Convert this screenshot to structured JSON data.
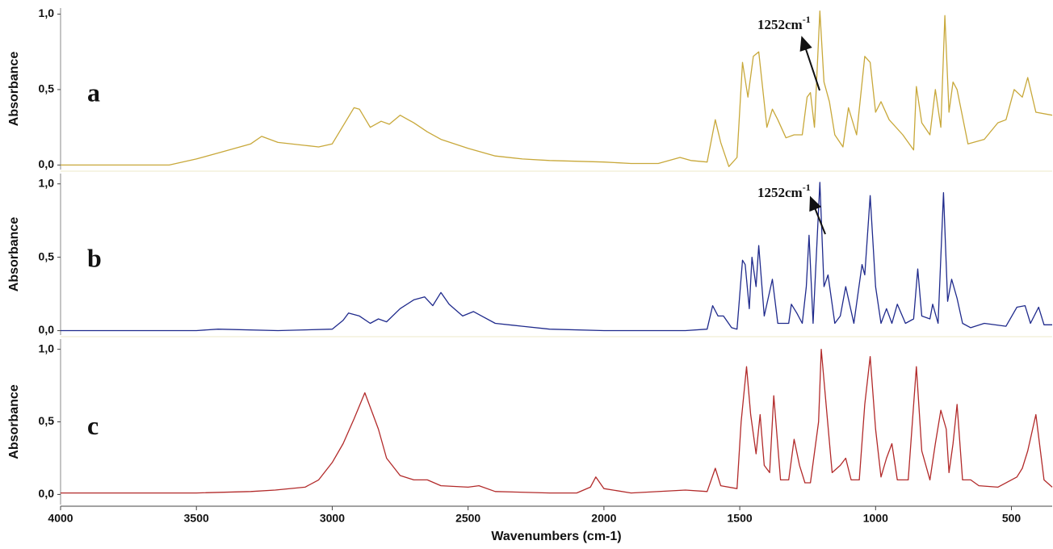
{
  "chart_data": [
    {
      "type": "line",
      "panel_label": "a",
      "ylabel": "Absorbance",
      "color": "#c8a83a",
      "annotation": {
        "text": "1252cm",
        "sup": "-1"
      },
      "xlim": [
        4000,
        350
      ],
      "ylim": [
        -0.03,
        1.04
      ],
      "yticks": [
        {
          "value": 0,
          "label": "0,0"
        },
        {
          "value": 0.5,
          "label": "0,5"
        },
        {
          "value": 1,
          "label": "1,0"
        }
      ],
      "x": [
        4000,
        3800,
        3600,
        3500,
        3400,
        3300,
        3260,
        3200,
        3100,
        3050,
        3000,
        2960,
        2920,
        2900,
        2860,
        2820,
        2790,
        2750,
        2700,
        2650,
        2600,
        2500,
        2400,
        2300,
        2200,
        2000,
        1900,
        1800,
        1720,
        1680,
        1620,
        1590,
        1570,
        1540,
        1510,
        1490,
        1470,
        1450,
        1430,
        1400,
        1380,
        1360,
        1330,
        1300,
        1270,
        1252,
        1240,
        1225,
        1205,
        1190,
        1170,
        1150,
        1120,
        1100,
        1070,
        1040,
        1020,
        1000,
        980,
        950,
        900,
        860,
        850,
        830,
        800,
        780,
        760,
        745,
        730,
        715,
        700,
        660,
        600,
        550,
        520,
        490,
        460,
        440,
        410,
        350
      ],
      "values": [
        0,
        0,
        0,
        0.04,
        0.09,
        0.14,
        0.19,
        0.15,
        0.13,
        0.12,
        0.14,
        0.26,
        0.38,
        0.37,
        0.25,
        0.29,
        0.27,
        0.33,
        0.28,
        0.22,
        0.17,
        0.11,
        0.06,
        0.04,
        0.03,
        0.02,
        0.01,
        0.01,
        0.05,
        0.03,
        0.02,
        0.3,
        0.15,
        -0.01,
        0.05,
        0.68,
        0.45,
        0.72,
        0.75,
        0.25,
        0.37,
        0.3,
        0.18,
        0.2,
        0.2,
        0.45,
        0.48,
        0.25,
        1.02,
        0.55,
        0.42,
        0.2,
        0.12,
        0.38,
        0.2,
        0.72,
        0.68,
        0.35,
        0.42,
        0.3,
        0.2,
        0.1,
        0.52,
        0.28,
        0.2,
        0.5,
        0.25,
        0.99,
        0.35,
        0.55,
        0.5,
        0.14,
        0.17,
        0.28,
        0.3,
        0.5,
        0.45,
        0.58,
        0.35,
        0.33
      ]
    },
    {
      "type": "line",
      "panel_label": "b",
      "ylabel": "Absorbance",
      "color": "#1f2a8c",
      "annotation": {
        "text": "1252cm",
        "sup": "-1"
      },
      "xlim": [
        4000,
        350
      ],
      "ylim": [
        -0.03,
        1.07
      ],
      "yticks": [
        {
          "value": 0,
          "label": "0,0"
        },
        {
          "value": 0.5,
          "label": "0,5"
        },
        {
          "value": 1,
          "label": "1,0"
        }
      ],
      "x": [
        4000,
        3500,
        3420,
        3200,
        3000,
        2960,
        2940,
        2900,
        2860,
        2830,
        2800,
        2750,
        2700,
        2660,
        2630,
        2600,
        2570,
        2520,
        2480,
        2450,
        2400,
        2300,
        2200,
        2000,
        1800,
        1700,
        1620,
        1600,
        1580,
        1560,
        1530,
        1510,
        1490,
        1480,
        1465,
        1455,
        1440,
        1430,
        1410,
        1380,
        1360,
        1320,
        1310,
        1290,
        1270,
        1255,
        1245,
        1230,
        1205,
        1190,
        1175,
        1150,
        1130,
        1110,
        1080,
        1050,
        1040,
        1020,
        1000,
        980,
        960,
        940,
        920,
        890,
        860,
        845,
        830,
        800,
        790,
        770,
        750,
        735,
        720,
        700,
        680,
        650,
        600,
        520,
        480,
        450,
        430,
        400,
        380,
        350
      ],
      "values": [
        0,
        0,
        0.01,
        0,
        0.01,
        0.07,
        0.12,
        0.1,
        0.05,
        0.08,
        0.06,
        0.15,
        0.21,
        0.23,
        0.17,
        0.26,
        0.18,
        0.1,
        0.13,
        0.1,
        0.05,
        0.03,
        0.01,
        0,
        0,
        0,
        0.01,
        0.17,
        0.1,
        0.1,
        0.02,
        0.01,
        0.48,
        0.45,
        0.15,
        0.5,
        0.3,
        0.58,
        0.1,
        0.35,
        0.05,
        0.05,
        0.18,
        0.12,
        0.05,
        0.3,
        0.65,
        0.05,
        1.01,
        0.3,
        0.38,
        0.05,
        0.1,
        0.3,
        0.05,
        0.45,
        0.38,
        0.92,
        0.3,
        0.05,
        0.15,
        0.05,
        0.18,
        0.05,
        0.08,
        0.42,
        0.1,
        0.08,
        0.18,
        0.05,
        0.94,
        0.2,
        0.35,
        0.22,
        0.05,
        0.02,
        0.05,
        0.03,
        0.16,
        0.17,
        0.05,
        0.16,
        0.04,
        0.04
      ]
    },
    {
      "type": "line",
      "panel_label": "c",
      "ylabel": "Absorbance",
      "xlabel": "Wavenumbers (cm-1)",
      "color": "#b22a2a",
      "xlim": [
        4000,
        350
      ],
      "ylim": [
        -0.07,
        1.07
      ],
      "xticks": [
        4000,
        3500,
        3000,
        2500,
        2000,
        1500,
        1000,
        500
      ],
      "yticks": [
        {
          "value": 0,
          "label": "0,0"
        },
        {
          "value": 0.5,
          "label": "0,5"
        },
        {
          "value": 1,
          "label": "1,0"
        }
      ],
      "x": [
        4000,
        3500,
        3300,
        3210,
        3100,
        3050,
        3000,
        2960,
        2920,
        2880,
        2850,
        2830,
        2800,
        2750,
        2700,
        2650,
        2600,
        2500,
        2460,
        2400,
        2200,
        2100,
        2050,
        2030,
        2000,
        1900,
        1700,
        1620,
        1590,
        1570,
        1510,
        1495,
        1475,
        1460,
        1440,
        1425,
        1410,
        1390,
        1375,
        1350,
        1320,
        1300,
        1280,
        1260,
        1240,
        1210,
        1200,
        1180,
        1160,
        1130,
        1110,
        1090,
        1060,
        1040,
        1020,
        1000,
        980,
        960,
        940,
        920,
        880,
        850,
        830,
        800,
        780,
        760,
        740,
        730,
        715,
        700,
        680,
        650,
        620,
        550,
        480,
        460,
        440,
        410,
        380,
        350
      ],
      "values": [
        0.01,
        0.01,
        0.02,
        0.03,
        0.05,
        0.1,
        0.22,
        0.35,
        0.52,
        0.7,
        0.55,
        0.45,
        0.25,
        0.13,
        0.1,
        0.1,
        0.06,
        0.05,
        0.06,
        0.02,
        0.01,
        0.01,
        0.05,
        0.12,
        0.04,
        0.01,
        0.03,
        0.02,
        0.18,
        0.06,
        0.04,
        0.5,
        0.88,
        0.55,
        0.28,
        0.55,
        0.2,
        0.15,
        0.68,
        0.1,
        0.1,
        0.38,
        0.2,
        0.08,
        0.08,
        0.5,
        1.0,
        0.57,
        0.15,
        0.2,
        0.25,
        0.1,
        0.1,
        0.62,
        0.95,
        0.45,
        0.12,
        0.25,
        0.35,
        0.1,
        0.1,
        0.88,
        0.3,
        0.1,
        0.35,
        0.58,
        0.45,
        0.15,
        0.35,
        0.62,
        0.1,
        0.1,
        0.06,
        0.05,
        0.12,
        0.18,
        0.3,
        0.55,
        0.1,
        0.05
      ]
    }
  ]
}
